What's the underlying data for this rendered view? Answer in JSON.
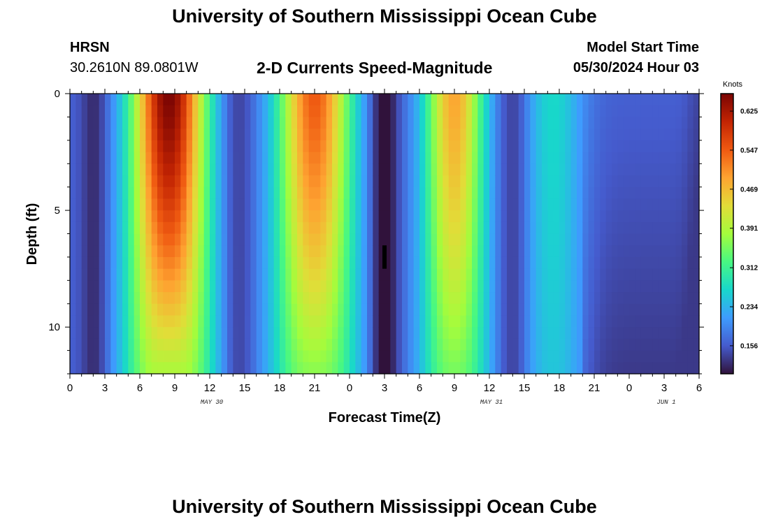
{
  "header": {
    "title": "University of Southern Mississippi Ocean Cube",
    "station": "HRSN",
    "coords": "30.2610N  89.0801W",
    "subtitle": "2-D Currents Speed-Magnitude",
    "model_start_label": "Model Start Time",
    "model_start_value": "05/30/2024 Hour 03"
  },
  "footer": {
    "title": "University of Southern Mississippi Ocean Cube"
  },
  "chart_data": {
    "type": "heatmap",
    "xlabel": "Forecast Time(Z)",
    "ylabel": "Depth (ft)",
    "x_range_hours": [
      0,
      54
    ],
    "y_range_ft": [
      0,
      12
    ],
    "x_ticks": [
      {
        "hour": 0,
        "label": "0"
      },
      {
        "hour": 3,
        "label": "3"
      },
      {
        "hour": 6,
        "label": "6"
      },
      {
        "hour": 9,
        "label": "9"
      },
      {
        "hour": 12,
        "label": "12"
      },
      {
        "hour": 15,
        "label": "15"
      },
      {
        "hour": 18,
        "label": "18"
      },
      {
        "hour": 21,
        "label": "21"
      },
      {
        "hour": 24,
        "label": "0"
      },
      {
        "hour": 27,
        "label": "3"
      },
      {
        "hour": 30,
        "label": "6"
      },
      {
        "hour": 33,
        "label": "9"
      },
      {
        "hour": 36,
        "label": "12"
      },
      {
        "hour": 39,
        "label": "15"
      },
      {
        "hour": 42,
        "label": "18"
      },
      {
        "hour": 45,
        "label": "21"
      },
      {
        "hour": 48,
        "label": "0"
      },
      {
        "hour": 51,
        "label": "3"
      },
      {
        "hour": 54,
        "label": "6"
      }
    ],
    "day_labels": [
      {
        "hour": 12,
        "label": "MAY 30"
      },
      {
        "hour": 36,
        "label": "MAY 31"
      },
      {
        "hour": 51,
        "label": "JUN 1"
      }
    ],
    "y_ticks": [
      {
        "depth": 0,
        "label": "0"
      },
      {
        "depth": 5,
        "label": "5"
      },
      {
        "depth": 10,
        "label": "10"
      }
    ],
    "colorbar": {
      "unit": "Knots",
      "min": 0.1,
      "max": 0.66,
      "ticks": [
        "0.156",
        "0.234",
        "0.312",
        "0.391",
        "0.469",
        "0.547",
        "0.625"
      ]
    },
    "time_step_hours": 0.5,
    "depth_step_ft": 0.5,
    "speed_profile": {
      "surface_peaks": [
        {
          "hour": 8.5,
          "speed": 0.66
        },
        {
          "hour": 21,
          "speed": 0.55
        },
        {
          "hour": 33,
          "speed": 0.49
        },
        {
          "hour": 41.5,
          "speed": 0.27
        }
      ],
      "minima": [
        {
          "hour": 2,
          "speed": 0.12
        },
        {
          "hour": 14.5,
          "speed": 0.14
        },
        {
          "hour": 27,
          "speed": 0.09
        },
        {
          "hour": 38,
          "speed": 0.14
        },
        {
          "hour": 54,
          "speed": 0.14
        }
      ],
      "background_speed": 0.16,
      "missing_cell": {
        "hour": 27,
        "depth_from": 6.5,
        "depth_to": 7.5
      }
    }
  }
}
